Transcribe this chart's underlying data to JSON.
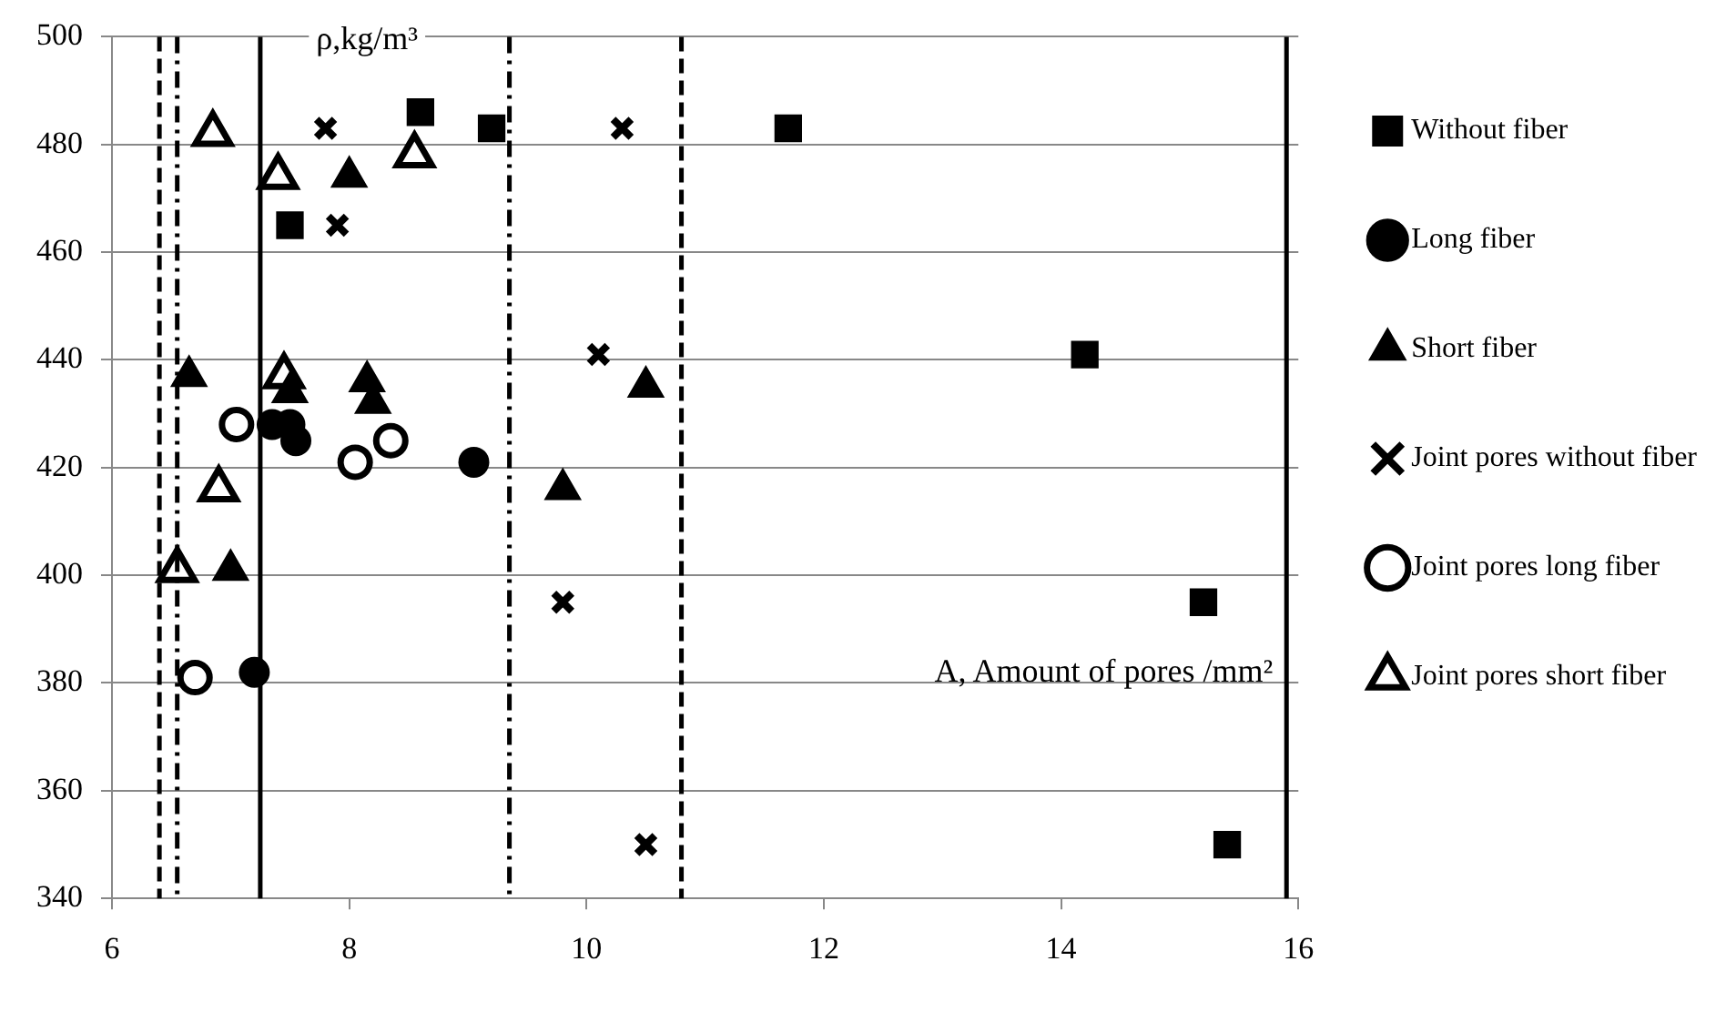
{
  "chart_data": {
    "type": "scatter",
    "xlabel": "A, Amount of pores /mm²",
    "ylabel": "ρ,kg/m³",
    "xlim": [
      6,
      16
    ],
    "xticks": [
      6,
      8,
      10,
      12,
      14,
      16
    ],
    "ylim": [
      340,
      500
    ],
    "yticks": [
      340,
      360,
      380,
      400,
      420,
      440,
      460,
      480,
      500
    ],
    "grid": "y",
    "legend": "right",
    "series": [
      {
        "name": "Without fiber",
        "color": "#000000",
        "marker": "square",
        "x": [
          8.6,
          9.2,
          7.5,
          11.7,
          14.2,
          15.2,
          15.4
        ],
        "values": [
          486,
          483,
          465,
          483,
          441,
          395,
          350
        ]
      },
      {
        "name": "Long fiber",
        "color": "#000000",
        "marker": "circle",
        "x": [
          7.2,
          7.35,
          7.5,
          7.55,
          9.05
        ],
        "values": [
          382,
          428,
          428,
          425,
          421
        ]
      },
      {
        "name": "Short fiber",
        "color": "#000000",
        "marker": "triangle",
        "x": [
          6.65,
          7.5,
          8.15,
          8.2,
          8.0,
          7.0,
          9.8,
          10.5
        ],
        "values": [
          437,
          434,
          436,
          432,
          474,
          401,
          416,
          435
        ]
      },
      {
        "name": "Joint pores without fiber",
        "color": "#000000",
        "marker": "cross",
        "x": [
          7.8,
          7.9,
          10.3,
          10.1,
          9.8,
          10.5
        ],
        "values": [
          483,
          465,
          483,
          441,
          395,
          350
        ]
      },
      {
        "name": "Joint pores long fiber",
        "color": "#000000",
        "marker": "circle",
        "x": [
          6.7,
          7.05,
          8.05,
          8.35
        ],
        "values": [
          381,
          428,
          421,
          425
        ]
      },
      {
        "name": "Joint pores short fiber",
        "color": "#000000",
        "marker": "triangle",
        "x": [
          6.85,
          7.4,
          8.55,
          7.45,
          6.9,
          6.55
        ],
        "values": [
          482,
          474,
          478,
          437,
          416,
          401
        ]
      }
    ],
    "ref_lines": [
      {
        "axis": "x",
        "value": 6.4,
        "line_style": "dashed",
        "color": "#000000"
      },
      {
        "axis": "x",
        "value": 6.55,
        "line_style": "dashdot",
        "color": "#000000"
      },
      {
        "axis": "x",
        "value": 7.25,
        "line_style": "solid",
        "color": "#000000"
      },
      {
        "axis": "x",
        "value": 9.35,
        "line_style": "dashdot",
        "color": "#000000"
      },
      {
        "axis": "x",
        "value": 10.8,
        "line_style": "dashed",
        "color": "#000000"
      },
      {
        "axis": "x",
        "value": 15.9,
        "line_style": "solid",
        "color": "#000000"
      }
    ]
  }
}
